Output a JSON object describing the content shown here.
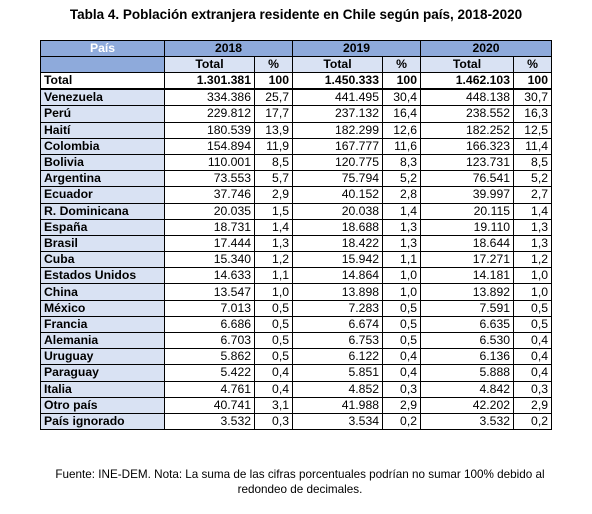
{
  "title": "Tabla 4. Población extranjera residente en Chile según país, 2018-2020",
  "headers": {
    "country": "País",
    "years": [
      "2018",
      "2019",
      "2020"
    ],
    "total": "Total",
    "percent": "%"
  },
  "total_row": {
    "name": "Total",
    "values": [
      "1.301.381",
      "100",
      "1.450.333",
      "100",
      "1.462.103",
      "100"
    ]
  },
  "rows": [
    {
      "name": "Venezuela",
      "values": [
        "334.386",
        "25,7",
        "441.495",
        "30,4",
        "448.138",
        "30,7"
      ]
    },
    {
      "name": "Perú",
      "values": [
        "229.812",
        "17,7",
        "237.132",
        "16,4",
        "238.552",
        "16,3"
      ]
    },
    {
      "name": "Haití",
      "values": [
        "180.539",
        "13,9",
        "182.299",
        "12,6",
        "182.252",
        "12,5"
      ]
    },
    {
      "name": "Colombia",
      "values": [
        "154.894",
        "11,9",
        "167.777",
        "11,6",
        "166.323",
        "11,4"
      ]
    },
    {
      "name": "Bolivia",
      "values": [
        "110.001",
        "8,5",
        "120.775",
        "8,3",
        "123.731",
        "8,5"
      ]
    },
    {
      "name": "Argentina",
      "values": [
        "73.553",
        "5,7",
        "75.794",
        "5,2",
        "76.541",
        "5,2"
      ]
    },
    {
      "name": "Ecuador",
      "values": [
        "37.746",
        "2,9",
        "40.152",
        "2,8",
        "39.997",
        "2,7"
      ]
    },
    {
      "name": "R. Dominicana",
      "values": [
        "20.035",
        "1,5",
        "20.038",
        "1,4",
        "20.115",
        "1,4"
      ]
    },
    {
      "name": "España",
      "values": [
        "18.731",
        "1,4",
        "18.688",
        "1,3",
        "19.110",
        "1,3"
      ]
    },
    {
      "name": "Brasil",
      "values": [
        "17.444",
        "1,3",
        "18.422",
        "1,3",
        "18.644",
        "1,3"
      ]
    },
    {
      "name": "Cuba",
      "values": [
        "15.340",
        "1,2",
        "15.942",
        "1,1",
        "17.271",
        "1,2"
      ]
    },
    {
      "name": "Estados Unidos",
      "values": [
        "14.633",
        "1,1",
        "14.864",
        "1,0",
        "14.181",
        "1,0"
      ]
    },
    {
      "name": "China",
      "values": [
        "13.547",
        "1,0",
        "13.898",
        "1,0",
        "13.892",
        "1,0"
      ]
    },
    {
      "name": "México",
      "values": [
        "7.013",
        "0,5",
        "7.283",
        "0,5",
        "7.591",
        "0,5"
      ]
    },
    {
      "name": "Francia",
      "values": [
        "6.686",
        "0,5",
        "6.674",
        "0,5",
        "6.635",
        "0,5"
      ]
    },
    {
      "name": "Alemania",
      "values": [
        "6.703",
        "0,5",
        "6.753",
        "0,5",
        "6.530",
        "0,4"
      ]
    },
    {
      "name": "Uruguay",
      "values": [
        "5.862",
        "0,5",
        "6.122",
        "0,4",
        "6.136",
        "0,4"
      ]
    },
    {
      "name": "Paraguay",
      "values": [
        "5.422",
        "0,4",
        "5.851",
        "0,4",
        "5.888",
        "0,4"
      ]
    },
    {
      "name": "Italia",
      "values": [
        "4.761",
        "0,4",
        "4.852",
        "0,3",
        "4.842",
        "0,3"
      ]
    },
    {
      "name": "Otro país",
      "values": [
        "40.741",
        "3,1",
        "41.988",
        "2,9",
        "42.202",
        "2,9"
      ]
    },
    {
      "name": "País ignorado",
      "values": [
        "3.532",
        "0,3",
        "3.534",
        "0,2",
        "3.532",
        "0,2"
      ]
    }
  ],
  "footer": {
    "line1": "Fuente: INE-DEM. Nota: La suma de las cifras porcentuales podrían no sumar 100% debido al",
    "line2": "redondeo de decimales."
  },
  "colors": {
    "header_dark": "#8eaadb",
    "header_light": "#d9e2f3"
  }
}
